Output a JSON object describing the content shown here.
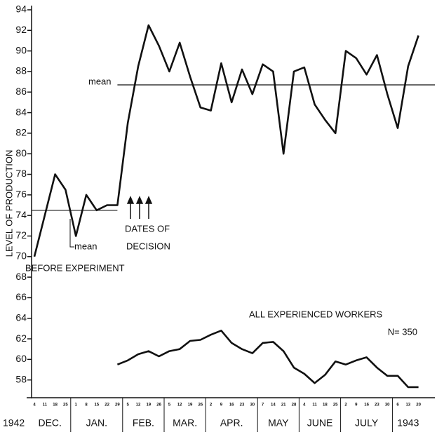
{
  "chart_data": {
    "type": "line",
    "y_label": "LEVEL OF PRODUCTION",
    "ylim": [
      56,
      94
    ],
    "yticks": [
      58,
      60,
      62,
      64,
      66,
      68,
      70,
      72,
      74,
      76,
      78,
      80,
      82,
      84,
      86,
      88,
      90,
      92,
      94
    ],
    "year_start": "1942",
    "months": [
      {
        "label": "DEC.",
        "weeks": [
          "4",
          "11",
          "18",
          "25"
        ]
      },
      {
        "label": "JAN.",
        "weeks": [
          "1",
          "8",
          "15",
          "22",
          "29"
        ]
      },
      {
        "label": "FEB.",
        "weeks": [
          "5",
          "12",
          "19",
          "26"
        ]
      },
      {
        "label": "MAR.",
        "weeks": [
          "5",
          "12",
          "19",
          "26"
        ]
      },
      {
        "label": "APR.",
        "weeks": [
          "2",
          "9",
          "16",
          "23",
          "30"
        ]
      },
      {
        "label": "MAY",
        "weeks": [
          "7",
          "14",
          "21",
          "28"
        ]
      },
      {
        "label": "JUNE",
        "weeks": [
          "4",
          "11",
          "18",
          "25"
        ]
      },
      {
        "label": "JULY",
        "weeks": [
          "2",
          "9",
          "16",
          "23",
          "30"
        ]
      },
      {
        "label": "1943",
        "weeks": [
          "6",
          "13",
          "20"
        ]
      }
    ],
    "series": [
      {
        "color": "#111111",
        "values": [
          70,
          74,
          78,
          76.5,
          72,
          76,
          74.5,
          75,
          75,
          83,
          88.5,
          92.5,
          90.5,
          88,
          90.8,
          87.5,
          84.5,
          84.2,
          88.8,
          85,
          88.2,
          85.8,
          88.7,
          88,
          80,
          88,
          88.4,
          84.8,
          83.3,
          82,
          90,
          89.3,
          87.7,
          89.6,
          85.8,
          82.5,
          88.5,
          91.5
        ]
      },
      {
        "color": "#111111",
        "values": [
          null,
          null,
          null,
          null,
          null,
          null,
          null,
          null,
          59.5,
          59.9,
          60.5,
          60.8,
          60.3,
          60.8,
          61,
          61.8,
          61.9,
          62.4,
          62.8,
          61.6,
          61,
          60.6,
          61.6,
          61.7,
          60.8,
          59.2,
          58.6,
          57.7,
          58.5,
          59.8,
          59.5,
          59.9,
          60.2,
          59.2,
          58.4,
          58.4,
          57.3,
          57.3
        ]
      }
    ],
    "mean_lines": [
      74.5,
      86.7
    ],
    "annotations": {
      "mean_after": "mean",
      "mean_before": "mean",
      "before": "BEFORE EXPERIMENT",
      "dates": [
        "DATES OF",
        "DECISION"
      ],
      "workers": "ALL EXPERIENCED WORKERS",
      "n": "N= 350"
    }
  }
}
